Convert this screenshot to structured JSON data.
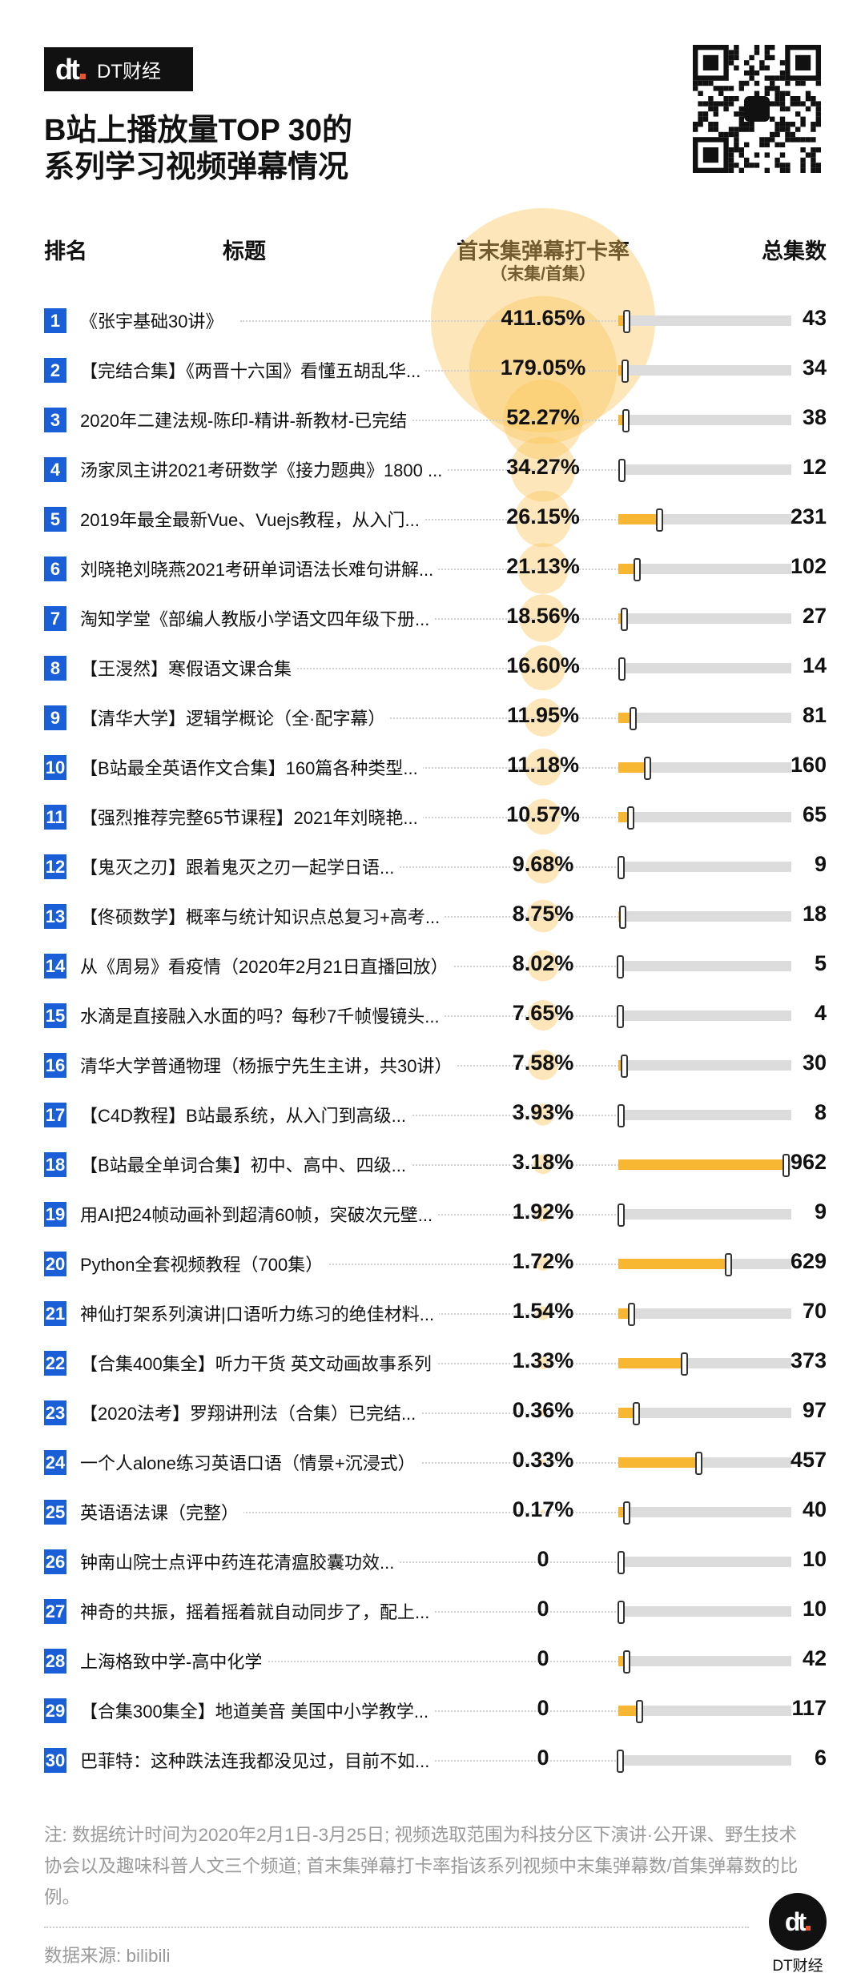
{
  "brand": {
    "logo_mark": "dt",
    "name": "DT财经"
  },
  "title_lines": [
    "B站上播放量TOP 30的",
    "系列学习视频弹幕情况"
  ],
  "headers": {
    "rank": "排名",
    "title": "标题",
    "rate": "首末集弹幕打卡率",
    "rate_sub": "（末集/首集）",
    "episodes": "总集数"
  },
  "colors": {
    "badge": "#1a5fd8",
    "bar": "#f7b733",
    "track": "#dcdcdc",
    "bubble": "#fbc55a"
  },
  "chart_data": {
    "type": "table",
    "title": "B站上播放量TOP 30的系列学习视频弹幕情况",
    "columns": [
      "排名",
      "标题",
      "首末集弹幕打卡率（末集/首集）",
      "总集数"
    ],
    "rows": [
      {
        "rank": "1",
        "title": "《张宇基础30讲》",
        "rate_label": "411.65%",
        "rate": 411.65,
        "episodes": 43
      },
      {
        "rank": "2",
        "title": "【完结合集】《两晋十六国》看懂五胡乱华...",
        "rate_label": "179.05%",
        "rate": 179.05,
        "episodes": 34
      },
      {
        "rank": "3",
        "title": "2020年二建法规-陈印-精讲-新教材-已完结",
        "rate_label": "52.27%",
        "rate": 52.27,
        "episodes": 38
      },
      {
        "rank": "4",
        "title": "汤家凤主讲2021考研数学《接力题典》1800 ...",
        "rate_label": "34.27%",
        "rate": 34.27,
        "episodes": 12
      },
      {
        "rank": "5",
        "title": "2019年最全最新Vue、Vuejs教程，从入门...",
        "rate_label": "26.15%",
        "rate": 26.15,
        "episodes": 231
      },
      {
        "rank": "6",
        "title": "刘晓艳刘晓燕2021考研单词语法长难句讲解...",
        "rate_label": "21.13%",
        "rate": 21.13,
        "episodes": 102
      },
      {
        "rank": "7",
        "title": "淘知学堂《部编人教版小学语文四年级下册...",
        "rate_label": "18.56%",
        "rate": 18.56,
        "episodes": 27
      },
      {
        "rank": "8",
        "title": "【王渂然】寒假语文课合集",
        "rate_label": "16.60%",
        "rate": 16.6,
        "episodes": 14
      },
      {
        "rank": "9",
        "title": "【清华大学】逻辑学概论（全·配字幕）",
        "rate_label": "11.95%",
        "rate": 11.95,
        "episodes": 81
      },
      {
        "rank": "10",
        "title": "【B站最全英语作文合集】160篇各种类型...",
        "rate_label": "11.18%",
        "rate": 11.18,
        "episodes": 160
      },
      {
        "rank": "11",
        "title": "【强烈推荐完整65节课程】2021年刘晓艳...",
        "rate_label": "10.57%",
        "rate": 10.57,
        "episodes": 65
      },
      {
        "rank": "12",
        "title": "【鬼灭之刃】跟着鬼灭之刃一起学日语...",
        "rate_label": "9.68%",
        "rate": 9.68,
        "episodes": 9
      },
      {
        "rank": "13",
        "title": "【佟硕数学】概率与统计知识点总复习+高考...",
        "rate_label": "8.75%",
        "rate": 8.75,
        "episodes": 18
      },
      {
        "rank": "14",
        "title": "从《周易》看疫情（2020年2月21日直播回放）",
        "rate_label": "8.02%",
        "rate": 8.02,
        "episodes": 5
      },
      {
        "rank": "15",
        "title": "水滴是直接融入水面的吗？每秒7千帧慢镜头...",
        "rate_label": "7.65%",
        "rate": 7.65,
        "episodes": 4
      },
      {
        "rank": "16",
        "title": "清华大学普通物理（杨振宁先生主讲，共30讲）",
        "rate_label": "7.58%",
        "rate": 7.58,
        "episodes": 30
      },
      {
        "rank": "17",
        "title": "【C4D教程】B站最系统，从入门到高级...",
        "rate_label": "3.93%",
        "rate": 3.93,
        "episodes": 8
      },
      {
        "rank": "18",
        "title": "【B站最全单词合集】初中、高中、四级...",
        "rate_label": "3.18%",
        "rate": 3.18,
        "episodes": 962
      },
      {
        "rank": "19",
        "title": "用AI把24帧动画补到超清60帧，突破次元壁...",
        "rate_label": "1.92%",
        "rate": 1.92,
        "episodes": 9
      },
      {
        "rank": "20",
        "title": "Python全套视频教程（700集）",
        "rate_label": "1.72%",
        "rate": 1.72,
        "episodes": 629
      },
      {
        "rank": "21",
        "title": "神仙打架系列演讲|口语听力练习的绝佳材料...",
        "rate_label": "1.54%",
        "rate": 1.54,
        "episodes": 70
      },
      {
        "rank": "22",
        "title": "【合集400集全】听力干货 英文动画故事系列",
        "rate_label": "1.33%",
        "rate": 1.33,
        "episodes": 373
      },
      {
        "rank": "23",
        "title": "【2020法考】罗翔讲刑法（合集）已完结...",
        "rate_label": "0.36%",
        "rate": 0.36,
        "episodes": 97
      },
      {
        "rank": "24",
        "title": "一个人alone练习英语口语（情景+沉浸式）",
        "rate_label": "0.33%",
        "rate": 0.33,
        "episodes": 457
      },
      {
        "rank": "25",
        "title": "英语语法课（完整）",
        "rate_label": "0.17%",
        "rate": 0.17,
        "episodes": 40
      },
      {
        "rank": "26",
        "title": "钟南山院士点评中药连花清瘟胶囊功效...",
        "rate_label": "0",
        "rate": 0,
        "episodes": 10
      },
      {
        "rank": "27",
        "title": "神奇的共振，摇着摇着就自动同步了，配上...",
        "rate_label": "0",
        "rate": 0,
        "episodes": 10
      },
      {
        "rank": "28",
        "title": "上海格致中学-高中化学",
        "rate_label": "0",
        "rate": 0,
        "episodes": 42
      },
      {
        "rank": "29",
        "title": "【合集300集全】地道美音 美国中小学教学...",
        "rate_label": "0",
        "rate": 0,
        "episodes": 117
      },
      {
        "rank": "30",
        "title": "巴菲特：这种跌法连我都没见过，目前不如...",
        "rate_label": "0",
        "rate": 0,
        "episodes": 6
      }
    ],
    "episodes_axis_max": 1000
  },
  "footer": {
    "note": "注: 数据统计时间为2020年2月1日-3月25日; 视频选取范围为科技分区下演讲·公开课、野生技术协会以及趣味科普人文三个频道; 首末集弹幕打卡率指该系列视频中末集弹幕数/首集弹幕数的比例。",
    "source": "数据来源: bilibili",
    "brand": "DT财经"
  }
}
